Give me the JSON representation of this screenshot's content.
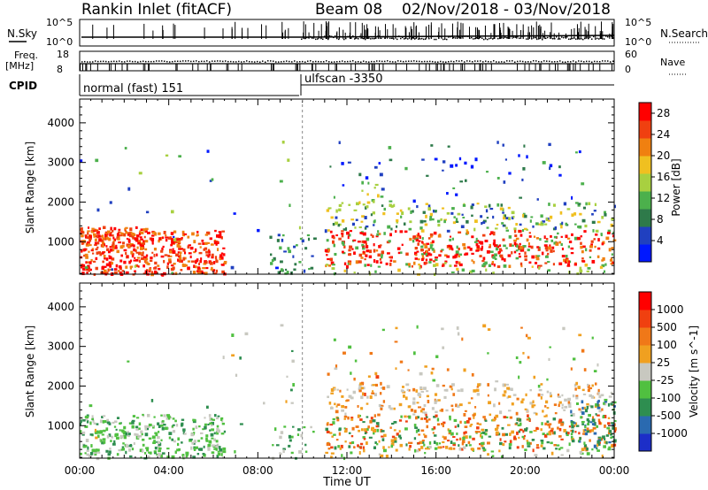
{
  "header": {
    "station": "Rankin Inlet (fitACF)",
    "beam": "Beam 08",
    "date_range": "02/Nov/2018 - 03/Nov/2018"
  },
  "status_panels": {
    "nsky_label": "N.Sky",
    "nsky_ticks": [
      "10^5",
      "10^0"
    ],
    "nsearch_label": "N.Search",
    "nsearch_ticks": [
      "10^5",
      "10^0"
    ],
    "freq_label_1": "Freq.",
    "freq_label_2": "[MHz]",
    "freq_ticks": [
      "18",
      "8"
    ],
    "nave_label": "Nave",
    "nave_ticks": [
      "60",
      "0"
    ],
    "cpid_label": "CPID",
    "cpid_segments": [
      "normal (fast) 151",
      "ulfscan -3350"
    ]
  },
  "colors": {
    "power_scale": [
      "#0018ff",
      "#2040c0",
      "#2e7a4a",
      "#4cb04c",
      "#a8d040",
      "#f0c020",
      "#f08010",
      "#f04010",
      "#ff0000"
    ],
    "velocity_scale": [
      "#1c2ec8",
      "#2a6ab0",
      "#2e8e50",
      "#50c040",
      "#c8c8c0",
      "#f0a020",
      "#f07818",
      "#f04010",
      "#ff0000"
    ]
  },
  "chart_data": [
    {
      "type": "heatmap",
      "parameter": "power",
      "ylabel": "Slant Range [km]",
      "xlabel": "Time UT",
      "x_ticks": [
        "00:00",
        "04:00",
        "08:00",
        "12:00",
        "16:00",
        "20:00",
        "00:00"
      ],
      "y_ticks": [
        "1000",
        "2000",
        "3000",
        "4000"
      ],
      "ylim": [
        180,
        4600
      ],
      "xlim_hours": [
        0,
        24
      ],
      "colorbar_label": "Power [dB]",
      "colorbar_ticks": [
        "4",
        "8",
        "12",
        "16",
        "20",
        "24",
        "28"
      ],
      "colorbar_range": [
        0,
        30
      ]
    },
    {
      "type": "heatmap",
      "parameter": "velocity",
      "ylabel": "Slant Range [km]",
      "xlabel": "Time UT",
      "x_ticks": [
        "00:00",
        "04:00",
        "08:00",
        "12:00",
        "16:00",
        "20:00",
        "00:00"
      ],
      "y_ticks": [
        "1000",
        "2000",
        "3000",
        "4000"
      ],
      "ylim": [
        180,
        4600
      ],
      "xlim_hours": [
        0,
        24
      ],
      "colorbar_label": "Velocity [m s^-1]",
      "colorbar_ticks": [
        "1000",
        "500",
        "100",
        "25",
        "-25",
        "-100",
        "-500",
        "-1000"
      ]
    }
  ]
}
